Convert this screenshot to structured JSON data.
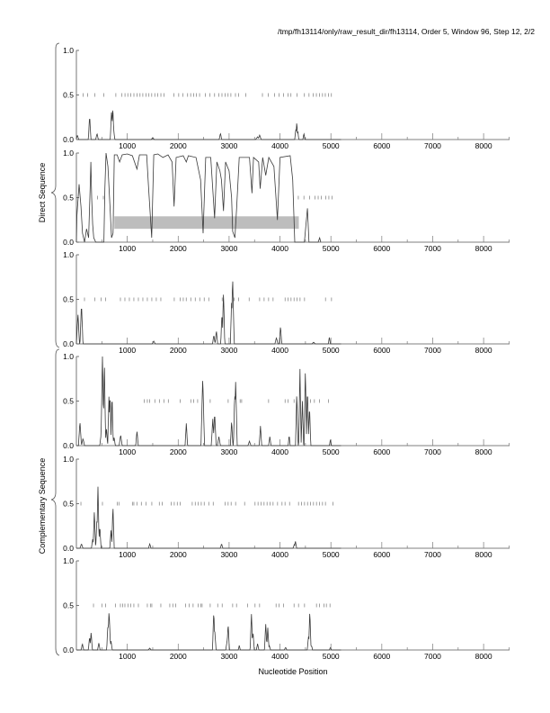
{
  "title": "/tmp/fh13114/only/raw_result_dir/fh13114, Order 5, Window 96, Step 12, 2/2",
  "chart_data": {
    "type": "line",
    "xlabel": "Nucleotide Position",
    "group_labels": [
      "Direct Sequence",
      "Complementary Sequence"
    ],
    "xlim": [
      0,
      8510
    ],
    "ylim": [
      0,
      1
    ],
    "x_ticks": [
      1000,
      2000,
      3000,
      4000,
      5000,
      6000,
      7000,
      8000
    ],
    "x_tick_labels": [
      "1000",
      "2000",
      "3000",
      "4000",
      "5000",
      "6000",
      "7000",
      "8000"
    ],
    "y_ticks": [
      0,
      0.5,
      1
    ],
    "y_tick_labels": [
      "0.0",
      "0.5",
      "1.0"
    ],
    "colors": {
      "line": "#3a3a3a",
      "axis": "#555555",
      "marks": "#777777",
      "region": "#bdbdbd"
    },
    "panels": [
      {
        "name": "direct-frame-1",
        "group": "Direct Sequence",
        "peaks": [
          [
            20,
            0.05,
            25
          ],
          [
            260,
            0.27,
            25
          ],
          [
            405,
            0.07,
            25
          ],
          [
            690,
            0.33,
            25
          ],
          [
            715,
            0.37,
            25
          ],
          [
            735,
            0.1,
            20
          ],
          [
            1500,
            0.02,
            30
          ],
          [
            2830,
            0.07,
            25
          ],
          [
            3560,
            0.03,
            40
          ],
          [
            3600,
            0.05,
            30
          ],
          [
            4310,
            0.12,
            20
          ],
          [
            4330,
            0.2,
            20
          ],
          [
            4350,
            0.1,
            20
          ],
          [
            4470,
            0.07,
            20
          ]
        ],
        "orf_marks": [
          130,
          220,
          365,
          540,
          775,
          895,
          955,
          1010,
          1070,
          1130,
          1190,
          1250,
          1305,
          1365,
          1425,
          1480,
          1540,
          1600,
          1660,
          1720,
          1915,
          2010,
          2095,
          2185,
          2245,
          2305,
          2360,
          2420,
          2535,
          2625,
          2715,
          2800,
          2860,
          2920,
          2980,
          3035,
          3125,
          3185,
          3330,
          3655,
          3770,
          3890,
          3980,
          4070,
          4160,
          4215,
          4335,
          4480,
          4570,
          4655,
          4715,
          4775,
          4835,
          4890,
          4950,
          5010
        ]
      },
      {
        "name": "direct-frame-2",
        "group": "Direct Sequence",
        "points": [
          [
            0,
            0
          ],
          [
            10,
            0.3
          ],
          [
            53,
            0.65
          ],
          [
            90,
            0.4
          ],
          [
            120,
            0.1
          ],
          [
            160,
            0
          ],
          [
            200,
            0.15
          ],
          [
            240,
            0.05
          ],
          [
            270,
            0.6
          ],
          [
            285,
            0.9
          ],
          [
            300,
            0.5
          ],
          [
            320,
            0.2
          ],
          [
            340,
            0.05
          ],
          [
            380,
            0
          ],
          [
            540,
            0
          ],
          [
            560,
            0.6
          ],
          [
            582,
            1.0
          ],
          [
            620,
            0.85
          ],
          [
            660,
            0.4
          ],
          [
            690,
            0.05
          ],
          [
            720,
            0.1
          ],
          [
            745,
            0.98
          ],
          [
            800,
            0.98
          ],
          [
            850,
            0.9
          ],
          [
            900,
            0.98
          ],
          [
            1000,
            0.99
          ],
          [
            1100,
            0.97
          ],
          [
            1190,
            0.82
          ],
          [
            1240,
            0.98
          ],
          [
            1380,
            0.98
          ],
          [
            1420,
            0.6
          ],
          [
            1480,
            0.05
          ],
          [
            1520,
            0.98
          ],
          [
            1600,
            0.99
          ],
          [
            1700,
            0.95
          ],
          [
            1800,
            0.98
          ],
          [
            1880,
            0.9
          ],
          [
            1920,
            0.4
          ],
          [
            1960,
            0.95
          ],
          [
            2100,
            0.97
          ],
          [
            2160,
            0.9
          ],
          [
            2200,
            0.97
          ],
          [
            2350,
            0.95
          ],
          [
            2440,
            0.7
          ],
          [
            2490,
            0.1
          ],
          [
            2540,
            0.95
          ],
          [
            2640,
            0.95
          ],
          [
            2715,
            0.27
          ],
          [
            2760,
            0.9
          ],
          [
            2820,
            0.8
          ],
          [
            2850,
            0.7
          ],
          [
            2890,
            0.35
          ],
          [
            2930,
            0.9
          ],
          [
            3000,
            0.8
          ],
          [
            3050,
            0.5
          ],
          [
            3070,
            0.12
          ],
          [
            3115,
            0.05
          ],
          [
            3150,
            0.4
          ],
          [
            3200,
            0.95
          ],
          [
            3400,
            0.95
          ],
          [
            3450,
            0.55
          ],
          [
            3480,
            0.95
          ],
          [
            3580,
            0.9
          ],
          [
            3610,
            0.6
          ],
          [
            3660,
            0.95
          ],
          [
            3720,
            0.75
          ],
          [
            3780,
            0.95
          ],
          [
            3880,
            0.85
          ],
          [
            3950,
            0.25
          ],
          [
            4000,
            0.95
          ],
          [
            4200,
            0.97
          ],
          [
            4250,
            0.7
          ],
          [
            4290,
            0.0
          ],
          [
            4480,
            0
          ],
          [
            4540,
            0.38
          ],
          [
            4570,
            0
          ],
          [
            4750,
            0
          ],
          [
            4780,
            0.05
          ],
          [
            4800,
            0
          ]
        ],
        "highlight_region": {
          "x": [
            745,
            4370
          ],
          "y": [
            0.15,
            0.29
          ]
        },
        "orf_marks": [
          417,
          530,
          4360,
          4470,
          4580,
          4690,
          4750,
          4810,
          4900,
          4960,
          5020
        ]
      },
      {
        "name": "direct-frame-3",
        "group": "Direct Sequence",
        "peaks": [
          [
            30,
            0.35,
            30
          ],
          [
            100,
            0.45,
            30
          ],
          [
            1520,
            0.03,
            30
          ],
          [
            2700,
            0.1,
            25
          ],
          [
            2750,
            0.15,
            25
          ],
          [
            2860,
            0.35,
            25
          ],
          [
            2890,
            0.6,
            25
          ],
          [
            3050,
            0.5,
            25
          ],
          [
            3070,
            0.75,
            30
          ],
          [
            3930,
            0.07,
            30
          ],
          [
            4010,
            0.2,
            25
          ],
          [
            4660,
            0.02,
            30
          ],
          [
            4970,
            0.08,
            20
          ]
        ],
        "orf_marks": [
          159,
          365,
          483,
          571,
          865,
          953,
          1041,
          1129,
          1218,
          1306,
          1394,
          1482,
          1570,
          1659,
          1923,
          2041,
          2100,
          2158,
          2247,
          2335,
          2423,
          2511,
          2600,
          2864,
          3100,
          3188,
          3394,
          3600,
          3688,
          3776,
          3864,
          4100,
          4159,
          4217,
          4276,
          4335,
          4394,
          4482,
          4894,
          5012
        ]
      },
      {
        "name": "complementary-frame-1",
        "group": "Complementary Sequence",
        "peaks": [
          [
            70,
            0.27,
            30
          ],
          [
            130,
            0.08,
            30
          ],
          [
            480,
            0.1,
            20
          ],
          [
            512,
            1.0,
            30
          ],
          [
            550,
            0.95,
            25
          ],
          [
            590,
            0.2,
            25
          ],
          [
            640,
            0.55,
            25
          ],
          [
            660,
            0.6,
            25
          ],
          [
            700,
            0.58,
            25
          ],
          [
            740,
            0.1,
            25
          ],
          [
            870,
            0.12,
            30
          ],
          [
            1190,
            0.17,
            25
          ],
          [
            2160,
            0.25,
            25
          ],
          [
            2482,
            0.77,
            35
          ],
          [
            2680,
            0.3,
            30
          ],
          [
            2716,
            0.37,
            30
          ],
          [
            2800,
            0.1,
            30
          ],
          [
            3050,
            0.28,
            25
          ],
          [
            3110,
            0.6,
            25
          ],
          [
            3129,
            0.74,
            30
          ],
          [
            3400,
            0.05,
            30
          ],
          [
            3616,
            0.22,
            25
          ],
          [
            3800,
            0.1,
            25
          ],
          [
            4180,
            0.12,
            20
          ],
          [
            4330,
            0.6,
            25
          ],
          [
            4392,
            0.86,
            25
          ],
          [
            4440,
            0.5,
            25
          ],
          [
            4498,
            0.88,
            25
          ],
          [
            4540,
            0.65,
            25
          ],
          [
            4580,
            0.45,
            25
          ],
          [
            4991,
            0.07,
            20
          ]
        ],
        "orf_marks": [
          1335,
          1394,
          1441,
          1541,
          1630,
          1718,
          1806,
          2041,
          2247,
          2306,
          2382,
          2629,
          2982,
          3217,
          3247,
          3776,
          4100,
          4159,
          4276,
          4600,
          4676,
          4776,
          4953
        ]
      },
      {
        "name": "complementary-frame-2",
        "group": "Complementary Sequence",
        "peaks": [
          [
            100,
            0.05,
            30
          ],
          [
            320,
            0.1,
            25
          ],
          [
            353,
            0.42,
            25
          ],
          [
            400,
            0.3,
            20
          ],
          [
            423,
            0.72,
            25
          ],
          [
            460,
            0.25,
            25
          ],
          [
            680,
            0.2,
            25
          ],
          [
            718,
            0.48,
            25
          ],
          [
            1441,
            0.05,
            25
          ],
          [
            2852,
            0.05,
            25
          ],
          [
            4280,
            0.04,
            25
          ],
          [
            4303,
            0.08,
            25
          ]
        ],
        "orf_marks": [
          89,
          424,
          512,
          806,
          835,
          1100,
          1129,
          1188,
          1276,
          1365,
          1482,
          1629,
          1688,
          1865,
          1923,
          1982,
          2041,
          2276,
          2335,
          2394,
          2453,
          2511,
          2600,
          2688,
          2922,
          2981,
          3040,
          3128,
          3305,
          3510,
          3569,
          3628,
          3687,
          3746,
          3805,
          3864,
          3952,
          4040,
          4099,
          4188,
          4364,
          4423,
          4482,
          4541,
          4599,
          4658,
          4717,
          4776,
          4835,
          4893,
          5040
        ]
      },
      {
        "name": "complementary-frame-3",
        "group": "Complementary Sequence",
        "peaks": [
          [
            118,
            0.07,
            25
          ],
          [
            260,
            0.15,
            25
          ],
          [
            289,
            0.2,
            25
          ],
          [
            441,
            0.08,
            25
          ],
          [
            620,
            0.3,
            25
          ],
          [
            642,
            0.44,
            30
          ],
          [
            680,
            0.1,
            25
          ],
          [
            1440,
            0.02,
            30
          ],
          [
            2699,
            0.44,
            25
          ],
          [
            2720,
            0.2,
            25
          ],
          [
            2960,
            0.1,
            25
          ],
          [
            2981,
            0.3,
            25
          ],
          [
            3200,
            0.05,
            20
          ],
          [
            3439,
            0.42,
            25
          ],
          [
            3470,
            0.2,
            25
          ],
          [
            3560,
            0.07,
            25
          ],
          [
            3720,
            0.29,
            25
          ],
          [
            3760,
            0.25,
            25
          ],
          [
            3790,
            0.05,
            25
          ],
          [
            4110,
            0.03,
            25
          ],
          [
            4560,
            0.15,
            25
          ],
          [
            4586,
            0.44,
            25
          ],
          [
            4620,
            0.05,
            20
          ],
          [
            4990,
            0.03,
            20
          ]
        ],
        "orf_marks": [
          336,
          500,
          571,
          765,
          865,
          912,
          953,
          1012,
          1071,
          1129,
          1218,
          1394,
          1453,
          1482,
          1659,
          1835,
          1894,
          1953,
          2146,
          2217,
          2293,
          2394,
          2441,
          2470,
          2629,
          2776,
          2864,
          3070,
          3146,
          3364,
          3510,
          3599,
          3923,
          3982,
          4070,
          4276,
          4364,
          4482,
          4717,
          4776,
          4864,
          4911,
          4982
        ]
      }
    ]
  }
}
